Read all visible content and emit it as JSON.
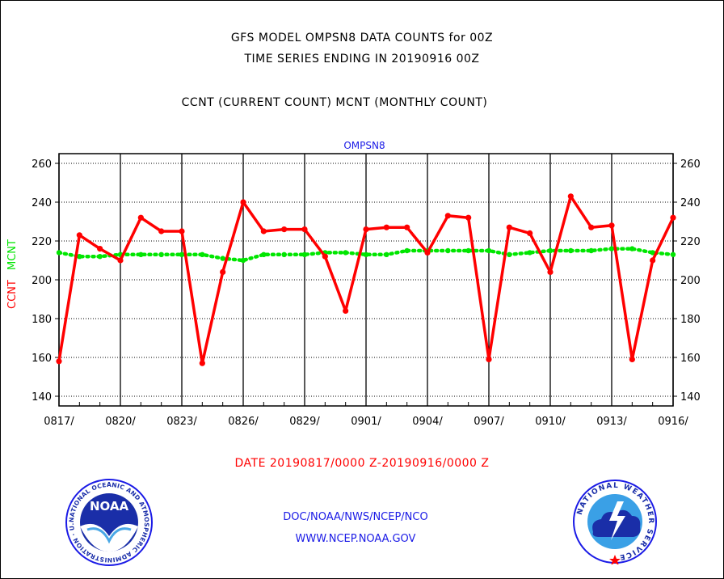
{
  "titles": {
    "line1": "GFS MODEL OMPSN8 DATA COUNTS for 00Z",
    "line2": "TIME SERIES ENDING IN 20190916 00Z",
    "line3": "CCNT (CURRENT COUNT) MCNT (MONTHLY COUNT)"
  },
  "chart_data": {
    "type": "line",
    "title": "OMPSN8",
    "xlabel": "",
    "ylabel": [
      "CCNT",
      "MCNT"
    ],
    "ylim": [
      135,
      265
    ],
    "yticks": [
      140,
      160,
      180,
      200,
      220,
      240,
      260
    ],
    "x": [
      "0817",
      "0818",
      "0819",
      "0820",
      "0821",
      "0822",
      "0823",
      "0824",
      "0825",
      "0826",
      "0827",
      "0828",
      "0829",
      "0830",
      "0831",
      "0901",
      "0902",
      "0903",
      "0904",
      "0905",
      "0906",
      "0907",
      "0908",
      "0909",
      "0910",
      "0911",
      "0912",
      "0913",
      "0914",
      "0915",
      "0916"
    ],
    "xtick_labels": [
      "0817/",
      "0820/",
      "0823/",
      "0826/",
      "0829/",
      "0901/",
      "0904/",
      "0907/",
      "0910/",
      "0913/",
      "0916/"
    ],
    "grid": true,
    "series": [
      {
        "name": "CCNT",
        "color": "#ff0000",
        "style": "solid",
        "values": [
          158,
          223,
          216,
          210,
          232,
          225,
          225,
          157,
          204,
          240,
          225,
          226,
          226,
          212,
          184,
          226,
          227,
          227,
          214,
          233,
          232,
          159,
          227,
          224,
          204,
          243,
          227,
          228,
          159,
          210,
          232
        ]
      },
      {
        "name": "MCNT",
        "color": "#00e600",
        "style": "dotted",
        "values": [
          214,
          212,
          212,
          213,
          213,
          213,
          213,
          213,
          211,
          210,
          213,
          213,
          213,
          214,
          214,
          213,
          213,
          215,
          215,
          215,
          215,
          215,
          213,
          214,
          215,
          215,
          215,
          216,
          216,
          214,
          213
        ]
      }
    ]
  },
  "date_range": "DATE 20190817/0000 Z-20190916/0000 Z",
  "footer": {
    "line1": "DOC/NOAA/NWS/NCEP/NCO",
    "line2": "WWW.NCEP.NOAA.GOV"
  },
  "logos": {
    "noaa_text": "NOAA",
    "noaa_ring": "NATIONAL OCEANIC AND ATMOSPHERIC ADMINISTRATION · U.S. DEPARTMENT OF COMMERCE ·",
    "nws_ring": "NATIONAL WEATHER SERVICE"
  },
  "colors": {
    "ccnt": "#ff0000",
    "mcnt": "#00e600",
    "footer": "#1a1ae6"
  }
}
